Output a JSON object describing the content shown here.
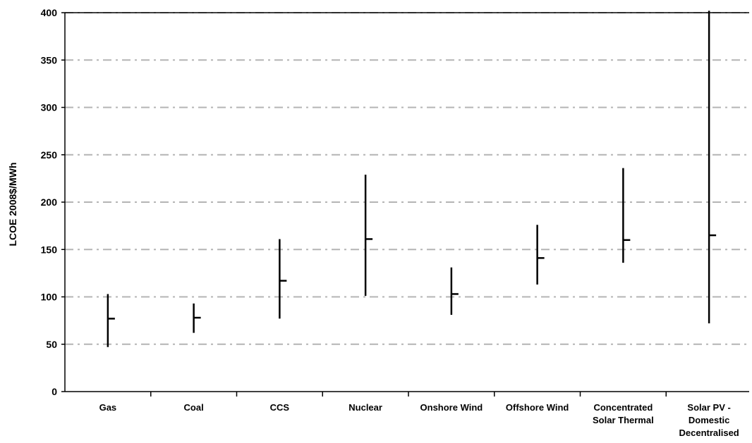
{
  "chart_data": {
    "type": "range",
    "title": "",
    "xlabel": "",
    "ylabel": "LCOE 2008$/MWh",
    "ylim": [
      0,
      400
    ],
    "yticks": [
      0,
      50,
      100,
      150,
      200,
      250,
      300,
      350,
      400
    ],
    "grid": true,
    "categories": [
      [
        "Gas"
      ],
      [
        "Coal"
      ],
      [
        "CCS"
      ],
      [
        "Nuclear"
      ],
      [
        "Onshore Wind"
      ],
      [
        "Offshore Wind"
      ],
      [
        "Concentrated",
        "Solar Thermal"
      ],
      [
        "Solar PV -",
        "Domestic",
        "Decentralised"
      ]
    ],
    "series": [
      {
        "name": "",
        "low": [
          47,
          62,
          77,
          101,
          81,
          113,
          136,
          72
        ]
      },
      {
        "name": "",
        "mid": [
          77,
          78,
          117,
          161,
          103,
          141,
          160,
          165
        ]
      },
      {
        "name": "",
        "high": [
          103,
          93,
          161,
          229,
          131,
          176,
          236,
          408
        ]
      }
    ]
  }
}
